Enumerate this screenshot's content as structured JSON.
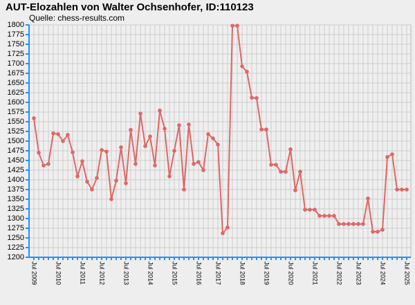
{
  "chart_data": {
    "type": "line",
    "title": "AUT-Elozahlen von Walter Ochsenhofer, ID:110123",
    "subtitle": "Quelle: chess-results.com",
    "categories": [
      "Jul 2009",
      null,
      null,
      null,
      null,
      "Jul 2010",
      null,
      null,
      null,
      null,
      "Jul 2011",
      null,
      null,
      null,
      "Jul 2012",
      null,
      null,
      null,
      null,
      "Jul 2013",
      null,
      null,
      null,
      null,
      "Jul 2014",
      null,
      null,
      null,
      null,
      "Jul 2015",
      null,
      null,
      null,
      null,
      "Jul 2016",
      null,
      null,
      null,
      "Jul 2017",
      null,
      null,
      null,
      null,
      "Jul 2018",
      null,
      null,
      null,
      null,
      "Jul 2019",
      null,
      null,
      null,
      null,
      "Jul 2020",
      null,
      null,
      null,
      null,
      "Jul 2021",
      null,
      null,
      null,
      null,
      "Jul 2022",
      null,
      null,
      null,
      "Jul 2023",
      null,
      null,
      null,
      null,
      "Jul 2024",
      null,
      null,
      null,
      null,
      "Jul 2025"
    ],
    "series": [
      {
        "name": "Elo",
        "color": "#e06666",
        "values": [
          1559,
          1470,
          1437,
          1441,
          1520,
          1518,
          1500,
          1516,
          1471,
          1409,
          1448,
          1395,
          1375,
          1405,
          1477,
          1473,
          1350,
          1398,
          1484,
          1391,
          1529,
          1441,
          1571,
          1487,
          1512,
          1437,
          1579,
          1532,
          1409,
          1475,
          1541,
          1375,
          1543,
          1441,
          1446,
          1425,
          1518,
          1507,
          1491,
          1262,
          1277,
          1798,
          1798,
          1693,
          1679,
          1612,
          1611,
          1530,
          1530,
          1439,
          1439,
          1421,
          1421,
          1479,
          1373,
          1421,
          1323,
          1323,
          1323,
          1307,
          1307,
          1307,
          1307,
          1286,
          1286,
          1286,
          1286,
          1286,
          1286,
          1352,
          1266,
          1266,
          1271,
          1459,
          1466,
          1375,
          1375,
          1375
        ]
      }
    ],
    "ylim": [
      1200,
      1800
    ],
    "yticks": [
      1200,
      1225,
      1250,
      1275,
      1300,
      1325,
      1350,
      1375,
      1400,
      1425,
      1450,
      1475,
      1500,
      1525,
      1550,
      1575,
      1600,
      1625,
      1650,
      1675,
      1700,
      1725,
      1750,
      1775,
      1800
    ],
    "grid": true
  }
}
